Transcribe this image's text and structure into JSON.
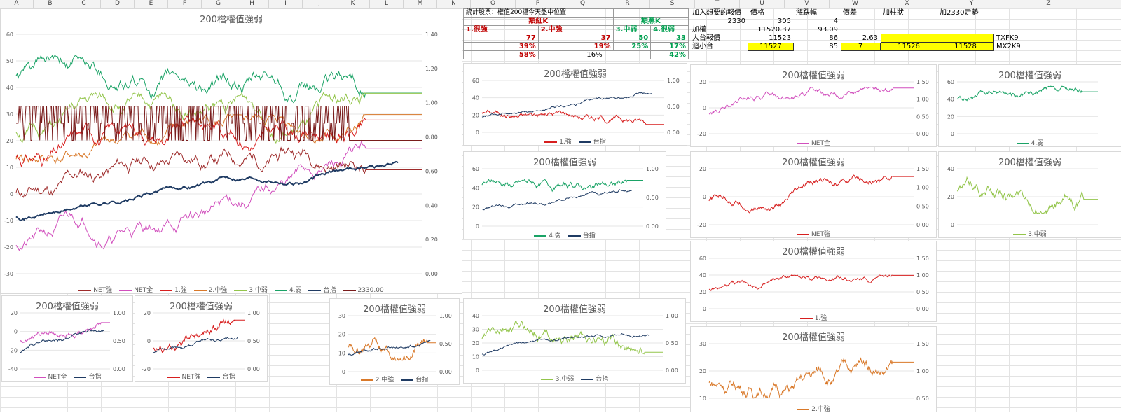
{
  "columns": [
    "A",
    "B",
    "C",
    "D",
    "E",
    "F",
    "G",
    "H",
    "I",
    "J",
    "K",
    "L",
    "M",
    "N",
    "O",
    "P",
    "Q",
    "R",
    "S",
    "T",
    "U",
    "V",
    "W",
    "X",
    "Y",
    "Z"
  ],
  "stats": {
    "title": "統計股票：權值200檔今天盤中位置",
    "group_red": "類紅K",
    "group_green": "類黑K",
    "labels": [
      "1.很強",
      "2.中強",
      "3.中弱",
      "4.很弱"
    ],
    "counts": [
      "77",
      "37",
      "50",
      "33"
    ],
    "pcts": [
      "39%",
      "19%",
      "25%",
      "17%"
    ],
    "sum_left": "58%",
    "sum_mid": "16%",
    "sum_right": "42%"
  },
  "pricing": {
    "headers": [
      "加入想要的報價",
      "價格",
      "漲跌幅",
      "價差",
      "加柱狀",
      "加2330走勢"
    ],
    "row1": {
      "label": "",
      "price_label": "2330",
      "price": "305",
      "change": "4"
    },
    "row2": {
      "label": "加權",
      "price": "11520.37",
      "change": "93.09"
    },
    "row3": {
      "label": "大台報價",
      "price": "11523",
      "change": "86",
      "spread": "2.63",
      "code": "TXFK9"
    },
    "row4": {
      "label": "迴小台",
      "price": "11527",
      "change": "85",
      "spread": "7",
      "bar": "11526",
      "trend": "11528",
      "code": "MX2K9"
    }
  },
  "colors": {
    "net_strong": "#9e2b2b",
    "net_all": "#d14fbd",
    "s1": "#d71f1f",
    "s2": "#d9792a",
    "s3": "#93c54b",
    "s4": "#1aa366",
    "index": "#1f3b63",
    "stock": "#7a1c1c"
  },
  "charts": {
    "main": {
      "title": "200檔權值強弱",
      "yleft": [
        "60",
        "50",
        "40",
        "30",
        "20",
        "10",
        "0",
        "-10",
        "-20",
        "-30"
      ],
      "yright": [
        "1.40",
        "1.20",
        "1.00",
        "0.80",
        "0.60",
        "0.40",
        "0.20",
        "0.00"
      ],
      "legend": [
        "NET強",
        "NET全",
        "1.強",
        "2.中強",
        "3.中弱",
        "4.弱",
        "台指",
        "2330.00"
      ]
    },
    "c1": {
      "title": "200檔權值強弱",
      "yleft": [
        "60",
        "40",
        "20",
        "0"
      ],
      "yright": [
        "1.00",
        "0.50",
        "0.00"
      ],
      "legend": [
        "1.強",
        "台指"
      ]
    },
    "c4": {
      "title": "200檔權值強弱",
      "yleft": [
        "60",
        "40",
        "20",
        "0"
      ],
      "yright": [
        "1.00",
        "0.50",
        "0.00"
      ],
      "legend": [
        "4.弱",
        "台指"
      ]
    },
    "c3": {
      "title": "200檔權值強弱",
      "yleft": [
        "40",
        "30",
        "20",
        "10",
        "0"
      ],
      "yright": [
        "1.00",
        "0.50",
        "0.00"
      ],
      "legend": [
        "3.中弱",
        "台指"
      ]
    },
    "cnetall": {
      "title": "200檔權值強弱",
      "yleft": [
        "20",
        "0",
        "-20",
        "-40"
      ],
      "yright": [
        "1.00",
        "0.50",
        "0.00"
      ],
      "legend": [
        "NET全",
        "台指"
      ]
    },
    "cnetstr": {
      "title": "200檔權值強弱",
      "yleft": [
        "20",
        "0",
        "-20"
      ],
      "yright": [
        "1.00",
        "0.50",
        "0.00"
      ],
      "legend": [
        "NET強",
        "台指"
      ]
    },
    "c2": {
      "title": "200檔權值強弱",
      "yleft": [
        "30",
        "20",
        "10",
        "0"
      ],
      "yright": [
        "1.00",
        "0.50",
        "0.00"
      ],
      "legend": [
        "2.中強",
        "台指"
      ]
    },
    "rNetAll": {
      "title": "200檔權值強弱",
      "yleft": [
        "20",
        "0",
        "-20"
      ],
      "yright": [
        "1.50",
        "1.00",
        "0.50",
        "0.00"
      ],
      "legend": [
        "NET全"
      ]
    },
    "rNetStr": {
      "title": "200檔權值強弱",
      "yleft": [
        "20",
        "0",
        "-20"
      ],
      "yright": [
        "1.50",
        "1.00",
        "0.50",
        "0.00"
      ],
      "legend": [
        "NET強"
      ]
    },
    "r1": {
      "title": "200檔權值強弱",
      "yleft": [
        "60",
        "40",
        "20",
        "0"
      ],
      "yright": [
        "1.50",
        "1.00",
        "0.50",
        "0.00"
      ],
      "legend": [
        "1.強"
      ]
    },
    "r2": {
      "title": "200檔權值強弱",
      "yleft": [
        "30",
        "20",
        "10"
      ],
      "yright": [
        "1.50",
        "1.00",
        "0.50"
      ],
      "legend": [
        "2.中強"
      ]
    },
    "far4": {
      "title": "200檔權值強弱",
      "yleft": [
        "60",
        "40",
        "20",
        "0"
      ],
      "legend": [
        "4.弱"
      ]
    },
    "far3": {
      "title": "200檔權值強弱",
      "yleft": [
        "40",
        "20",
        "0"
      ],
      "legend": [
        "3.中弱"
      ]
    }
  }
}
